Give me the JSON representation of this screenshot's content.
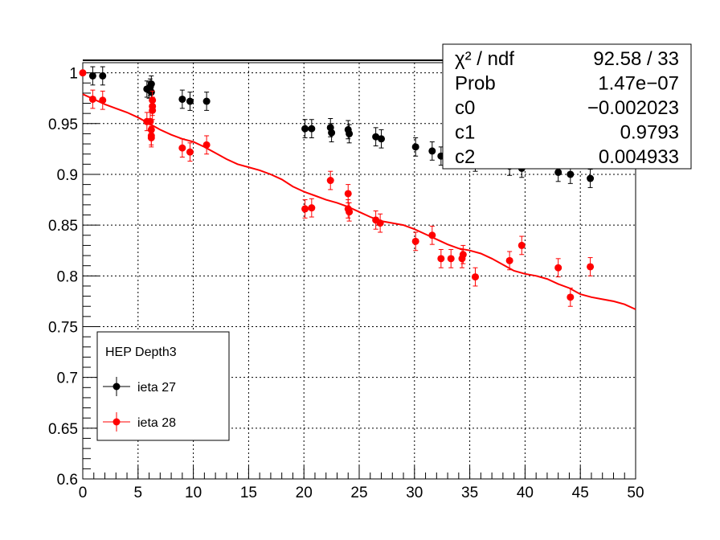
{
  "chart_data": {
    "type": "scatter",
    "title": "",
    "xlabel": "",
    "ylabel": "",
    "xlim": [
      0,
      50
    ],
    "ylim": [
      0.6,
      1.01
    ],
    "grid": true,
    "x_ticks": [
      "0",
      "5",
      "10",
      "15",
      "20",
      "25",
      "30",
      "35",
      "40",
      "45",
      "50"
    ],
    "y_ticks": [
      "0.6",
      "0.65",
      "0.7",
      "0.75",
      "0.8",
      "0.85",
      "0.9",
      "0.95",
      "1"
    ],
    "legend": {
      "header": "HEP Depth3",
      "placement": "bottom-left",
      "entries": [
        {
          "label": "ieta 27",
          "color": "#000000"
        },
        {
          "label": "ieta 28",
          "color": "#ff0000"
        }
      ]
    },
    "series": [
      {
        "name": "ieta 27",
        "color": "#000000",
        "points": [
          {
            "x": 0.9,
            "y": 0.997,
            "err": 0.009
          },
          {
            "x": 1.8,
            "y": 0.997,
            "err": 0.009
          },
          {
            "x": 5.8,
            "y": 0.984,
            "err": 0.008
          },
          {
            "x": 6.0,
            "y": 0.983,
            "err": 0.008
          },
          {
            "x": 6.1,
            "y": 0.986,
            "err": 0.008
          },
          {
            "x": 6.2,
            "y": 0.989,
            "err": 0.008
          },
          {
            "x": 6.2,
            "y": 0.981,
            "err": 0.008
          },
          {
            "x": 9.0,
            "y": 0.974,
            "err": 0.009
          },
          {
            "x": 9.7,
            "y": 0.972,
            "err": 0.009
          },
          {
            "x": 11.2,
            "y": 0.972,
            "err": 0.009
          },
          {
            "x": 20.1,
            "y": 0.945,
            "err": 0.009
          },
          {
            "x": 20.7,
            "y": 0.945,
            "err": 0.009
          },
          {
            "x": 22.4,
            "y": 0.946,
            "err": 0.009
          },
          {
            "x": 22.5,
            "y": 0.941,
            "err": 0.009
          },
          {
            "x": 24.0,
            "y": 0.944,
            "err": 0.009
          },
          {
            "x": 24.1,
            "y": 0.94,
            "err": 0.009
          },
          {
            "x": 26.5,
            "y": 0.937,
            "err": 0.009
          },
          {
            "x": 27.0,
            "y": 0.935,
            "err": 0.009
          },
          {
            "x": 30.1,
            "y": 0.927,
            "err": 0.009
          },
          {
            "x": 31.6,
            "y": 0.923,
            "err": 0.009
          },
          {
            "x": 32.4,
            "y": 0.918,
            "err": 0.009
          },
          {
            "x": 34.4,
            "y": 0.916,
            "err": 0.009
          },
          {
            "x": 35.5,
            "y": 0.912,
            "err": 0.009
          },
          {
            "x": 38.6,
            "y": 0.908,
            "err": 0.009
          },
          {
            "x": 39.7,
            "y": 0.906,
            "err": 0.009
          },
          {
            "x": 43.0,
            "y": 0.902,
            "err": 0.009
          },
          {
            "x": 44.1,
            "y": 0.9,
            "err": 0.009
          },
          {
            "x": 45.9,
            "y": 0.896,
            "err": 0.009
          }
        ]
      },
      {
        "name": "ieta 28",
        "color": "#ff0000",
        "points": [
          {
            "x": 0.0,
            "y": 1.0,
            "err": 0.0
          },
          {
            "x": 0.9,
            "y": 0.974,
            "err": 0.009
          },
          {
            "x": 1.8,
            "y": 0.973,
            "err": 0.009
          },
          {
            "x": 5.8,
            "y": 0.952,
            "err": 0.009
          },
          {
            "x": 6.1,
            "y": 0.952,
            "err": 0.009
          },
          {
            "x": 6.2,
            "y": 0.944,
            "err": 0.009
          },
          {
            "x": 6.2,
            "y": 0.936,
            "err": 0.009
          },
          {
            "x": 6.2,
            "y": 0.938,
            "err": 0.009
          },
          {
            "x": 6.3,
            "y": 0.963,
            "err": 0.009
          },
          {
            "x": 6.3,
            "y": 0.967,
            "err": 0.009
          },
          {
            "x": 6.3,
            "y": 0.973,
            "err": 0.009
          },
          {
            "x": 9.0,
            "y": 0.926,
            "err": 0.009
          },
          {
            "x": 9.7,
            "y": 0.922,
            "err": 0.009
          },
          {
            "x": 11.2,
            "y": 0.929,
            "err": 0.009
          },
          {
            "x": 20.1,
            "y": 0.866,
            "err": 0.009
          },
          {
            "x": 20.7,
            "y": 0.867,
            "err": 0.009
          },
          {
            "x": 22.4,
            "y": 0.894,
            "err": 0.009
          },
          {
            "x": 24.0,
            "y": 0.881,
            "err": 0.009
          },
          {
            "x": 24.0,
            "y": 0.866,
            "err": 0.009
          },
          {
            "x": 24.1,
            "y": 0.863,
            "err": 0.009
          },
          {
            "x": 26.5,
            "y": 0.855,
            "err": 0.009
          },
          {
            "x": 26.9,
            "y": 0.852,
            "err": 0.009
          },
          {
            "x": 30.1,
            "y": 0.834,
            "err": 0.009
          },
          {
            "x": 31.6,
            "y": 0.84,
            "err": 0.009
          },
          {
            "x": 32.4,
            "y": 0.817,
            "err": 0.009
          },
          {
            "x": 33.3,
            "y": 0.817,
            "err": 0.009
          },
          {
            "x": 34.3,
            "y": 0.817,
            "err": 0.009
          },
          {
            "x": 34.4,
            "y": 0.821,
            "err": 0.009
          },
          {
            "x": 35.5,
            "y": 0.799,
            "err": 0.009
          },
          {
            "x": 38.6,
            "y": 0.815,
            "err": 0.009
          },
          {
            "x": 39.7,
            "y": 0.83,
            "err": 0.009
          },
          {
            "x": 43.0,
            "y": 0.808,
            "err": 0.009
          },
          {
            "x": 44.1,
            "y": 0.779,
            "err": 0.009
          },
          {
            "x": 45.9,
            "y": 0.809,
            "err": 0.009
          }
        ]
      }
    ],
    "fit": {
      "color": "#ff0000",
      "curve": [
        [
          0,
          0.979
        ],
        [
          1,
          0.974
        ],
        [
          2,
          0.969
        ],
        [
          3,
          0.965
        ],
        [
          4,
          0.961
        ],
        [
          5,
          0.956
        ],
        [
          6,
          0.95
        ],
        [
          7,
          0.944
        ],
        [
          8,
          0.939
        ],
        [
          9,
          0.935
        ],
        [
          10,
          0.932
        ],
        [
          11,
          0.927
        ],
        [
          12,
          0.921
        ],
        [
          13,
          0.915
        ],
        [
          14,
          0.91
        ],
        [
          15,
          0.907
        ],
        [
          16,
          0.904
        ],
        [
          17,
          0.9
        ],
        [
          18,
          0.895
        ],
        [
          19,
          0.888
        ],
        [
          20,
          0.883
        ],
        [
          21,
          0.879
        ],
        [
          22,
          0.875
        ],
        [
          23,
          0.872
        ],
        [
          24,
          0.868
        ],
        [
          25,
          0.863
        ],
        [
          26,
          0.858
        ],
        [
          27,
          0.854
        ],
        [
          28,
          0.852
        ],
        [
          29,
          0.85
        ],
        [
          30,
          0.846
        ],
        [
          31,
          0.841
        ],
        [
          32,
          0.836
        ],
        [
          33,
          0.831
        ],
        [
          34,
          0.827
        ],
        [
          35,
          0.825
        ],
        [
          36,
          0.822
        ],
        [
          37,
          0.817
        ],
        [
          38,
          0.811
        ],
        [
          39,
          0.805
        ],
        [
          40,
          0.802
        ],
        [
          41,
          0.8
        ],
        [
          42,
          0.797
        ],
        [
          43,
          0.792
        ],
        [
          44,
          0.788
        ],
        [
          45,
          0.782
        ],
        [
          46,
          0.779
        ],
        [
          47,
          0.777
        ],
        [
          48,
          0.775
        ],
        [
          49,
          0.772
        ],
        [
          50,
          0.767
        ]
      ]
    },
    "stats_box": {
      "placement": "top-right",
      "rows": [
        {
          "label": "χ² / ndf",
          "value": "92.58 / 33"
        },
        {
          "label": "Prob",
          "value": "1.47e−07"
        },
        {
          "label": "c0",
          "value": "−0.002023"
        },
        {
          "label": "c1",
          "value": "0.9793"
        },
        {
          "label": "c2",
          "value": "0.004933"
        }
      ]
    }
  }
}
